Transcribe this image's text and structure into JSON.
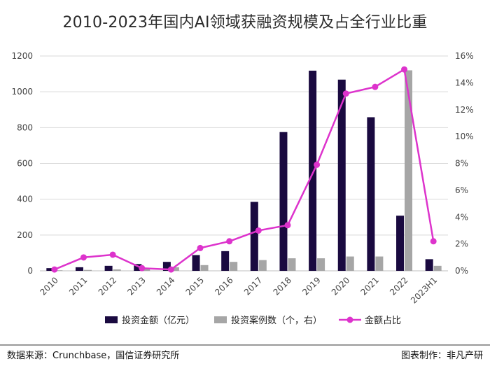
{
  "colors": {
    "amount": "#1a0a40",
    "cases": "#a6a6a6",
    "share": "#dd33cc",
    "grid": "#d9d9d9",
    "axis": "#bfbfbf"
  },
  "chart_data": {
    "type": "bar",
    "title": "2010-2023年国内AI领域获融资规模及占全行业比重",
    "categories": [
      "2010",
      "2011",
      "2012",
      "2013",
      "2014",
      "2015",
      "2016",
      "2017",
      "2018",
      "2019",
      "2020",
      "2021",
      "2022",
      "2023H1"
    ],
    "y_left": {
      "min": 0,
      "max": 1200,
      "ticks": [
        0,
        200,
        400,
        600,
        800,
        1000,
        1200
      ]
    },
    "y_right": {
      "min": 0,
      "max": 16,
      "ticks": [
        0,
        2,
        4,
        6,
        8,
        10,
        12,
        14,
        16
      ],
      "suffix": "%"
    },
    "series": [
      {
        "name": "投资金额（亿元）",
        "kind": "bar",
        "axis": "left",
        "values": [
          15,
          20,
          28,
          38,
          50,
          88,
          110,
          385,
          775,
          1118,
          1068,
          858,
          308,
          65
        ]
      },
      {
        "name": "投资案例数（个，右）",
        "kind": "bar",
        "axis": "left",
        "values": [
          3,
          5,
          8,
          10,
          20,
          32,
          50,
          60,
          70,
          70,
          80,
          80,
          1120,
          28
        ]
      },
      {
        "name": "金额占比",
        "kind": "line",
        "axis": "right",
        "values": [
          0.1,
          1.0,
          1.2,
          0.2,
          0.1,
          1.7,
          2.2,
          3.0,
          3.4,
          7.9,
          13.2,
          13.7,
          15.0,
          2.2
        ]
      }
    ],
    "legend_position": "bottom"
  },
  "footer": {
    "source": "数据来源：Crunchbase，国信证券研究所",
    "credit": "图表制作：非凡产研"
  }
}
